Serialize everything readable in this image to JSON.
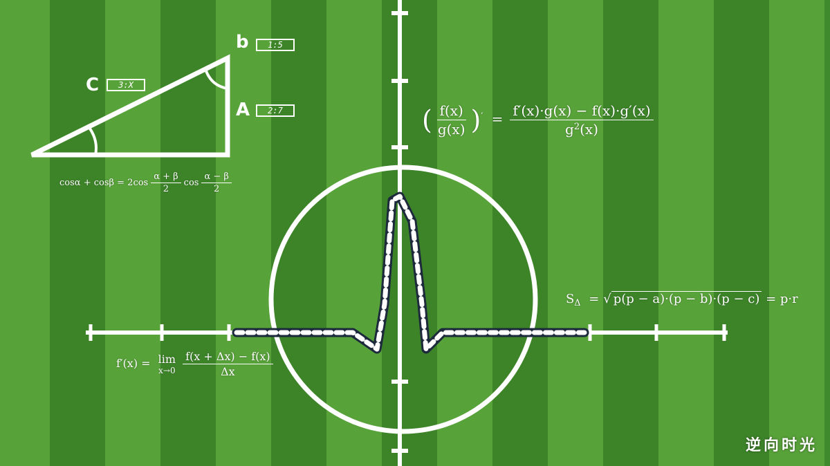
{
  "colors": {
    "grass_light": "#58a23a",
    "grass_dark": "#3d8429",
    "line": "#ffffff",
    "jersey_dark": "#1c2a3c"
  },
  "triangle": {
    "label_c": "C",
    "label_b": "b",
    "label_a": "A",
    "box_c": "3:X",
    "box_b": "1:5",
    "box_a": "2:7"
  },
  "formulas": {
    "sum_to_product": {
      "lhs": "cosα + cosβ = 2cos",
      "frac1_num": "α + β",
      "frac1_den": "2",
      "mid": "cos",
      "frac2_num": "α − β",
      "frac2_den": "2"
    },
    "quotient_rule": {
      "inner_num": "f(x)",
      "inner_den": "g(x)",
      "equals": "=",
      "rhs_num": "f′(x)·g(x) − f(x)·g′(x)",
      "rhs_den_base": "g",
      "rhs_den_exp": "2",
      "rhs_den_tail": "(x)"
    },
    "heron": {
      "lhs": "S",
      "lhs_sub": "Δ",
      "eq": "=",
      "radicand": "p(p − a)·(p − b)·(p − c)",
      "rhs": "= p·r"
    },
    "derivative": {
      "lhs": "f′(x) =",
      "lim": "lim",
      "lim_sub": "x→0",
      "num": "f(x + Δx) − f(x)",
      "den": "Δx"
    }
  },
  "watermark": "逆向时光"
}
